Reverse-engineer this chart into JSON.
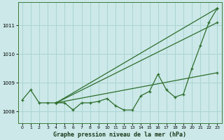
{
  "title": "Graphe pression niveau de la mer (hPa)",
  "background_color": "#cce8e8",
  "grid_color": "#aad4d4",
  "line_color": "#2d6e2d",
  "xlim_min": -0.5,
  "xlim_max": 23.5,
  "ylim_min": 1007.6,
  "ylim_max": 1011.8,
  "yticks": [
    1008,
    1009,
    1010,
    1011
  ],
  "xticks": [
    0,
    1,
    2,
    3,
    4,
    5,
    6,
    7,
    8,
    9,
    10,
    11,
    12,
    13,
    14,
    15,
    16,
    17,
    18,
    19,
    20,
    21,
    22,
    23
  ],
  "main_hours": [
    0,
    1,
    2,
    3,
    4,
    5,
    6,
    7,
    8,
    9,
    10,
    11,
    12,
    13,
    14,
    15,
    16,
    17,
    18,
    19,
    20,
    21,
    22,
    23
  ],
  "main_values": [
    1008.4,
    1008.75,
    1008.3,
    1008.3,
    1008.3,
    1008.3,
    1008.05,
    1008.3,
    1008.3,
    1008.35,
    1008.45,
    1008.2,
    1008.05,
    1008.05,
    1008.55,
    1008.7,
    1009.3,
    1008.75,
    1008.5,
    1008.6,
    1009.5,
    1010.3,
    1011.1,
    1011.6
  ],
  "fan_lines": [
    {
      "x": [
        4,
        23
      ],
      "y": [
        1008.3,
        1011.6
      ]
    },
    {
      "x": [
        4,
        23
      ],
      "y": [
        1008.3,
        1011.1
      ]
    },
    {
      "x": [
        4,
        23
      ],
      "y": [
        1008.3,
        1009.35
      ]
    }
  ]
}
